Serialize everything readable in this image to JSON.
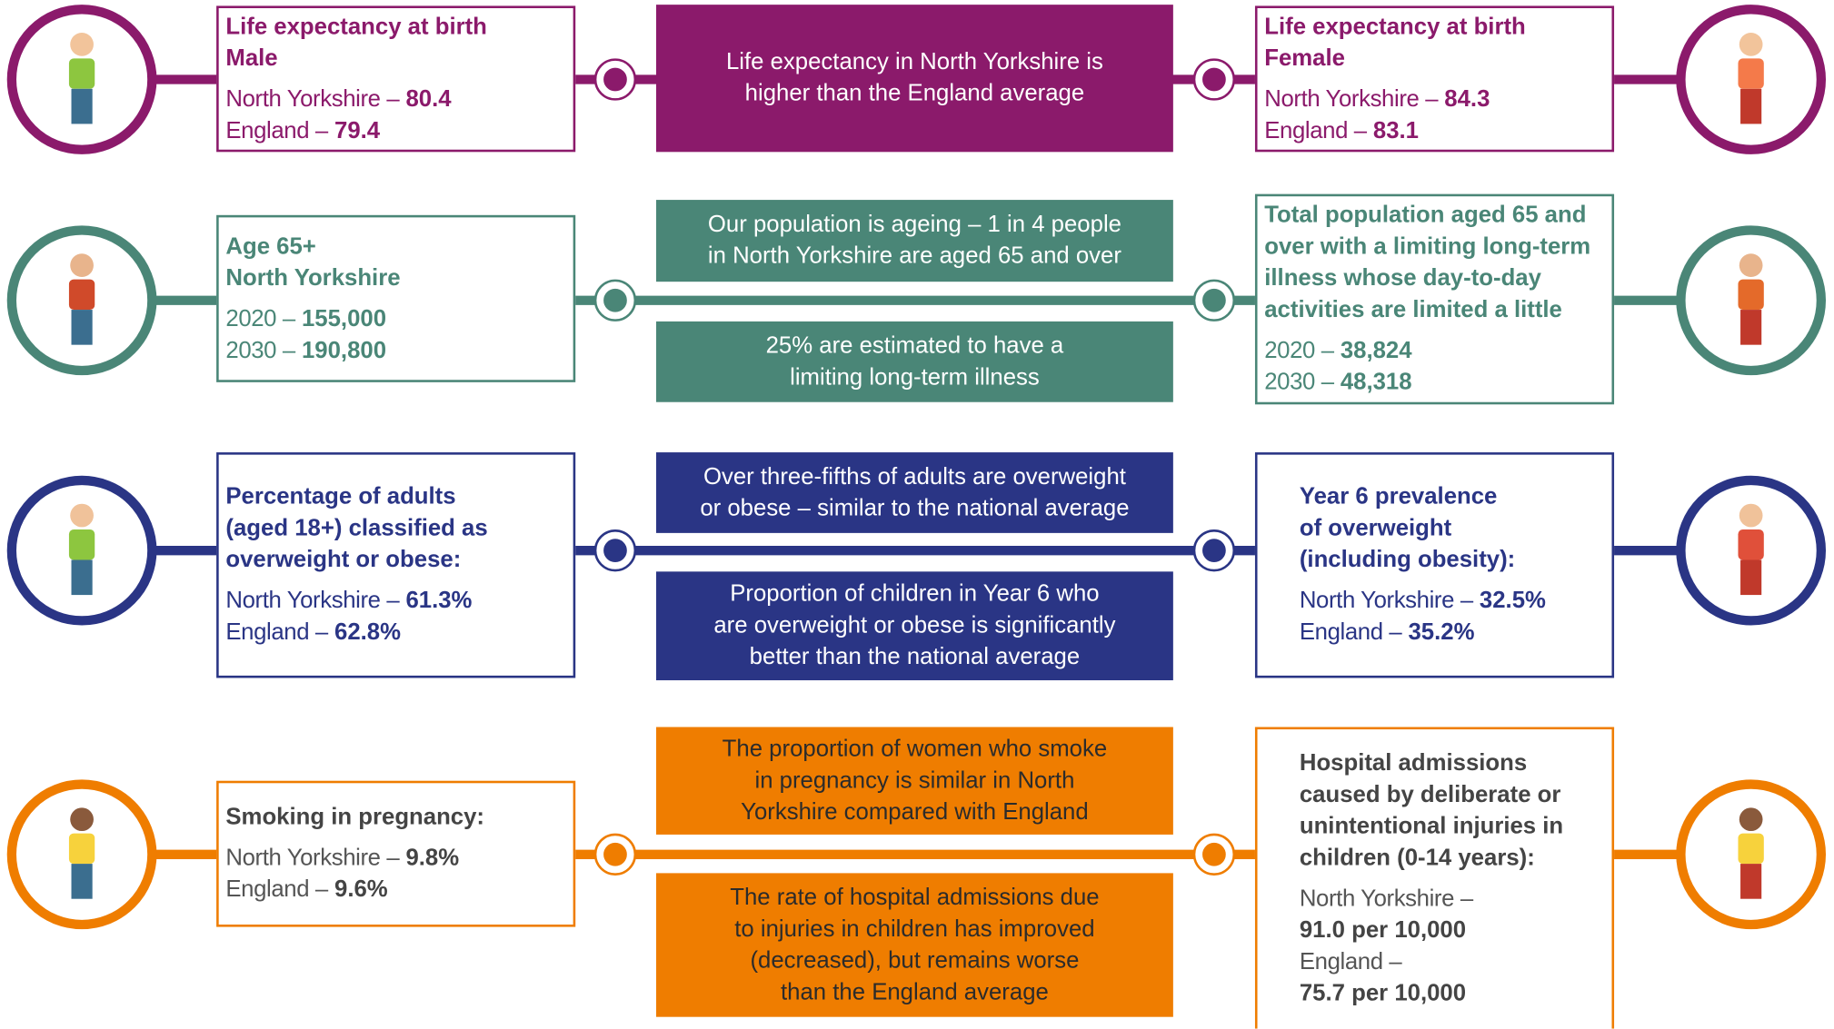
{
  "rows": [
    {
      "left": {
        "title": [
          "Life expectancy at birth",
          "Male"
        ],
        "stats": [
          {
            "label": "North Yorkshire –",
            "value": "80.4"
          },
          {
            "label": "England –",
            "value": "79.4"
          }
        ]
      },
      "center": [
        [
          "Life expectancy in North Yorkshire is",
          "higher than the England average"
        ]
      ],
      "right": {
        "title": [
          "Life expectancy at birth",
          "Female"
        ],
        "stats": [
          {
            "label": "North Yorkshire –",
            "value": "84.3"
          },
          {
            "label": "England –",
            "value": "83.1"
          }
        ]
      }
    },
    {
      "left": {
        "title": [
          "Age 65+",
          "North Yorkshire"
        ],
        "stats": [
          {
            "label": "2020 –",
            "value": "155,000"
          },
          {
            "label": "2030 –",
            "value": "190,800"
          }
        ]
      },
      "center": [
        [
          "Our population is ageing – 1 in 4 people",
          "in North Yorkshire are aged 65 and over"
        ],
        [
          "25% are estimated to have a",
          "limiting long-term illness"
        ]
      ],
      "right": {
        "title": [
          "Total population aged 65 and",
          "over with a limiting long-term",
          "illness whose day-to-day",
          "activities are limited a little"
        ],
        "stats": [
          {
            "label": "2020 –",
            "value": "38,824"
          },
          {
            "label": "2030 –",
            "value": "48,318"
          }
        ]
      }
    },
    {
      "left": {
        "title": [
          "Percentage of adults",
          "(aged 18+) classified as",
          "overweight or obese:"
        ],
        "stats": [
          {
            "label": "North Yorkshire –",
            "value": "61.3%"
          },
          {
            "label": "England –",
            "value": "62.8%"
          }
        ]
      },
      "center": [
        [
          "Over three-fifths of adults are overweight",
          "or obese – similar to the national average"
        ],
        [
          "Proportion of children in Year 6 who",
          "are overweight or obese is significantly",
          "better than the national average"
        ]
      ],
      "right": {
        "title": [
          "Year 6 prevalence",
          "of overweight",
          "(including obesity):"
        ],
        "stats": [
          {
            "label": "North Yorkshire –",
            "value": "32.5%"
          },
          {
            "label": "England –",
            "value": "35.2%"
          }
        ]
      }
    },
    {
      "left": {
        "title": [
          "Smoking in pregnancy:"
        ],
        "stats": [
          {
            "label": "North Yorkshire –",
            "value": "9.8%"
          },
          {
            "label": "England –",
            "value": "9.6%"
          }
        ]
      },
      "center": [
        [
          "The proportion of women who smoke",
          "in pregnancy is similar in North",
          "Yorkshire compared with England"
        ],
        [
          "The rate of hospital admissions due",
          "to injuries in children has improved",
          "(decreased), but remains worse",
          "than the England average"
        ]
      ],
      "right": {
        "title": [
          "Hospital admissions",
          "caused by deliberate or",
          "unintentional injuries in",
          "children (0-14 years):"
        ],
        "stats": [
          {
            "label": "North Yorkshire –",
            "value": "91.0 per 10,000"
          },
          {
            "label": "England –",
            "value": "75.7 per 10,000"
          }
        ]
      }
    }
  ]
}
